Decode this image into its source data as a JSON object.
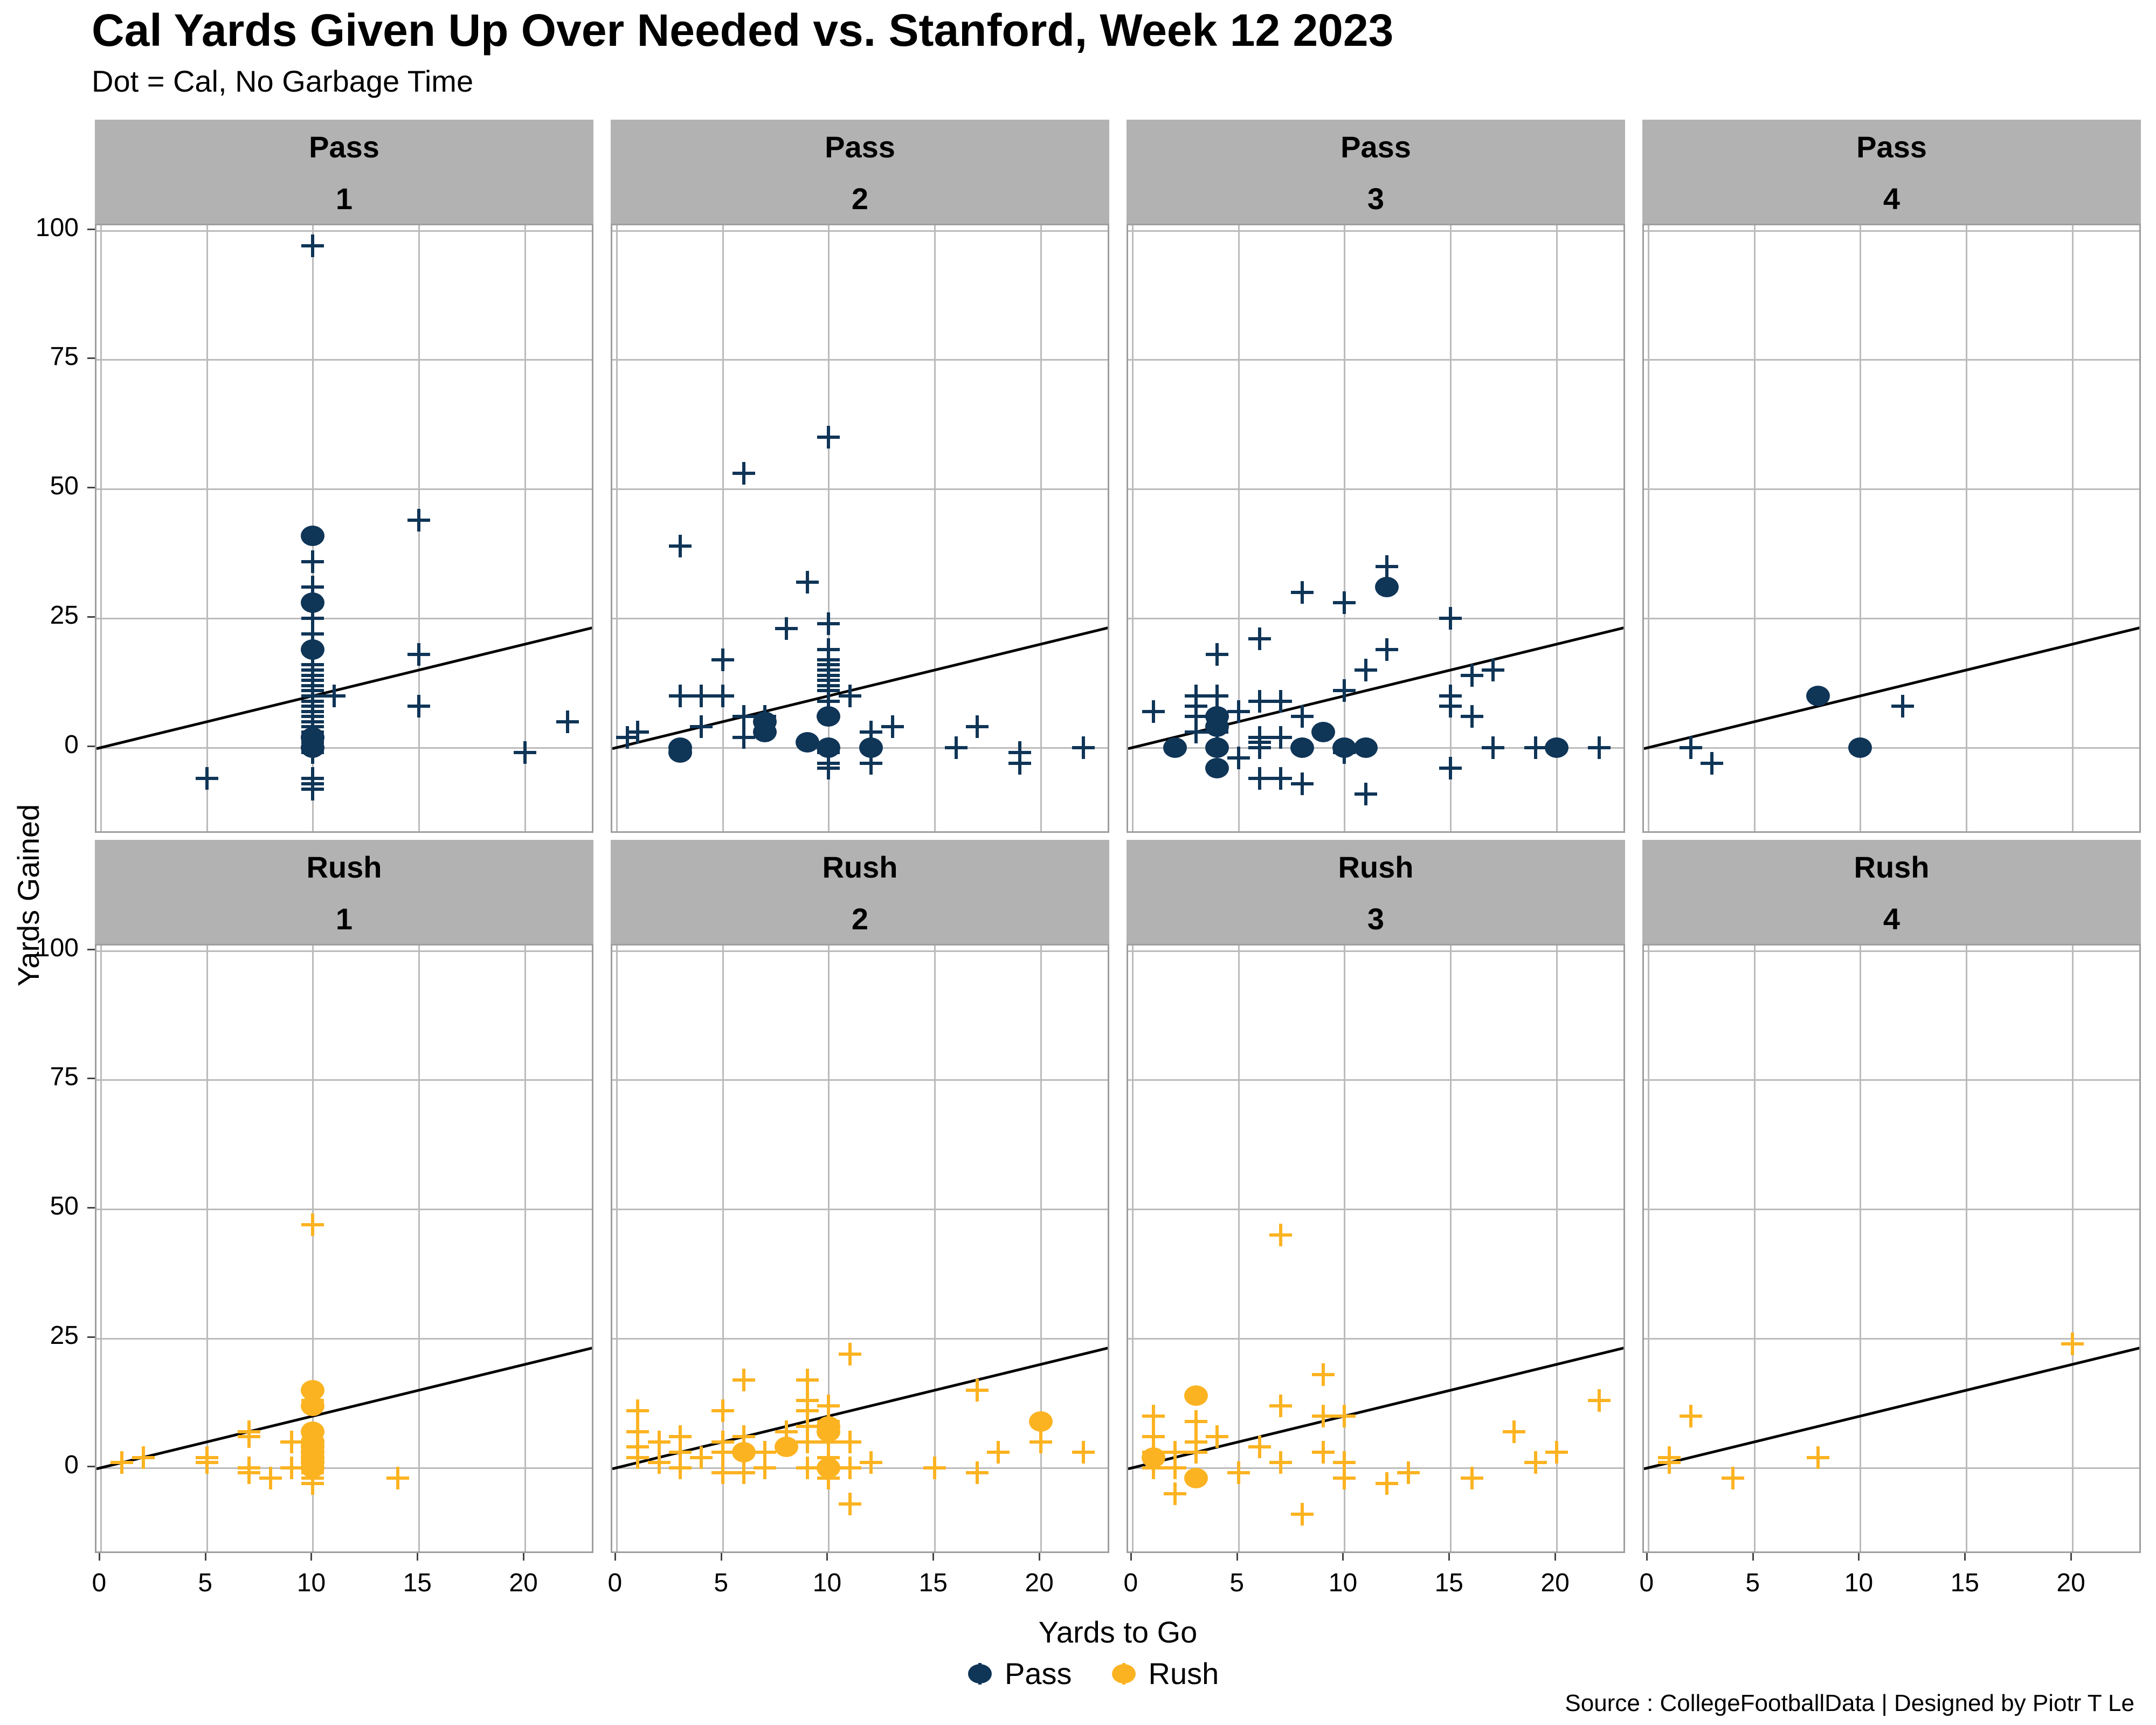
{
  "labels": {
    "title": "Cal Yards Given Up Over Needed vs. Stanford, Week 12 2023",
    "subtitle": "Dot = Cal, No Garbage Time",
    "x_axis": "Yards to Go",
    "y_axis": "Yards Gained",
    "caption": "Source : CollegeFootballData | Designed by Piotr T Le"
  },
  "legend": {
    "items": [
      {
        "label": "Pass",
        "color": "#0F3557"
      },
      {
        "label": "Rush",
        "color": "#FCB321"
      }
    ]
  },
  "colors": {
    "pass": "#0F3557",
    "rush": "#FCB321",
    "strip_bg": "#B2B2B2",
    "gridline": "#BBBBBB",
    "panel_border": "#9E9E9E",
    "refline": "#000000"
  },
  "chart_data": {
    "type": "scatter",
    "title": "Cal Yards Given Up Over Needed vs. Stanford, Week 12 2023",
    "subtitle": "Dot = Cal, No Garbage Time",
    "xlabel": "Yards to Go",
    "ylabel": "Yards Gained",
    "xlim": [
      -0.2,
      23.3
    ],
    "ylim": [
      -16.8,
      101
    ],
    "xticks": [
      0,
      5,
      10,
      15,
      20
    ],
    "yticks": [
      0,
      25,
      50,
      75,
      100
    ],
    "grid": true,
    "legend_position": "bottom",
    "refline": {
      "intercept": 0,
      "slope": 1
    },
    "marker_note": "plus = Stanford play, dot = Cal play",
    "facets": [
      {
        "type": "Pass",
        "down": "1",
        "stanford": [
          [
            10,
            97
          ],
          [
            10,
            36
          ],
          [
            10,
            31
          ],
          [
            10,
            25
          ],
          [
            10,
            22
          ],
          [
            10,
            16
          ],
          [
            10,
            15
          ],
          [
            10,
            14
          ],
          [
            10,
            13
          ],
          [
            10,
            12
          ],
          [
            10,
            11
          ],
          [
            10,
            10
          ],
          [
            10,
            9
          ],
          [
            10,
            8
          ],
          [
            10,
            7
          ],
          [
            10,
            6
          ],
          [
            10,
            5
          ],
          [
            10,
            4
          ],
          [
            10,
            3
          ],
          [
            10,
            2
          ],
          [
            10,
            1
          ],
          [
            10,
            0
          ],
          [
            10,
            -1
          ],
          [
            10,
            -6
          ],
          [
            10,
            -7
          ],
          [
            10,
            -8
          ],
          [
            5,
            -6
          ],
          [
            11,
            10
          ],
          [
            15,
            44
          ],
          [
            15,
            18
          ],
          [
            15,
            8
          ],
          [
            20,
            -1
          ],
          [
            22,
            5
          ]
        ],
        "cal": [
          [
            10,
            41
          ],
          [
            10,
            28
          ],
          [
            10,
            19
          ],
          [
            10,
            2
          ],
          [
            10,
            0
          ]
        ]
      },
      {
        "type": "Pass",
        "down": "2",
        "stanford": [
          [
            0.5,
            2
          ],
          [
            1,
            3
          ],
          [
            3,
            39
          ],
          [
            3,
            10
          ],
          [
            4,
            10
          ],
          [
            4,
            4
          ],
          [
            5,
            17
          ],
          [
            5,
            10
          ],
          [
            6,
            53
          ],
          [
            6,
            6
          ],
          [
            6,
            2
          ],
          [
            7,
            6
          ],
          [
            8,
            23
          ],
          [
            9,
            32
          ],
          [
            10,
            60
          ],
          [
            10,
            24
          ],
          [
            10,
            19
          ],
          [
            10,
            17
          ],
          [
            10,
            16
          ],
          [
            10,
            15
          ],
          [
            10,
            14
          ],
          [
            10,
            13
          ],
          [
            10,
            12
          ],
          [
            10,
            11
          ],
          [
            10,
            9
          ],
          [
            10,
            -1
          ],
          [
            10,
            -3
          ],
          [
            10,
            -4
          ],
          [
            11,
            10
          ],
          [
            12,
            3
          ],
          [
            12,
            -3
          ],
          [
            13,
            4
          ],
          [
            16,
            0
          ],
          [
            17,
            4
          ],
          [
            19,
            -1
          ],
          [
            19,
            -3
          ],
          [
            22,
            0
          ]
        ],
        "cal": [
          [
            3,
            0
          ],
          [
            3,
            -1
          ],
          [
            7,
            5
          ],
          [
            7,
            3
          ],
          [
            9,
            1
          ],
          [
            10,
            6
          ],
          [
            10,
            0
          ],
          [
            12,
            0
          ]
        ]
      },
      {
        "type": "Pass",
        "down": "3",
        "stanford": [
          [
            1,
            7
          ],
          [
            3,
            10
          ],
          [
            3,
            8
          ],
          [
            3,
            6
          ],
          [
            3,
            3
          ],
          [
            4,
            18
          ],
          [
            4,
            10
          ],
          [
            4,
            3
          ],
          [
            5,
            7
          ],
          [
            5,
            -2
          ],
          [
            6,
            21
          ],
          [
            6,
            9
          ],
          [
            6,
            2
          ],
          [
            6,
            1
          ],
          [
            6,
            0
          ],
          [
            6,
            -6
          ],
          [
            7,
            9
          ],
          [
            7,
            2
          ],
          [
            7,
            -6
          ],
          [
            8,
            30
          ],
          [
            8,
            6
          ],
          [
            8,
            -7
          ],
          [
            10,
            28
          ],
          [
            10,
            11
          ],
          [
            10,
            -1
          ],
          [
            11,
            15
          ],
          [
            11,
            -9
          ],
          [
            12,
            35
          ],
          [
            12,
            19
          ],
          [
            15,
            25
          ],
          [
            15,
            10
          ],
          [
            15,
            8
          ],
          [
            15,
            -4
          ],
          [
            16,
            14
          ],
          [
            16,
            6
          ],
          [
            17,
            15
          ],
          [
            17,
            0
          ],
          [
            19,
            0
          ],
          [
            22,
            0
          ]
        ],
        "cal": [
          [
            2,
            0
          ],
          [
            4,
            6
          ],
          [
            4,
            4
          ],
          [
            4,
            0
          ],
          [
            4,
            -4
          ],
          [
            8,
            0
          ],
          [
            9,
            3
          ],
          [
            10,
            0
          ],
          [
            11,
            0
          ],
          [
            12,
            31
          ],
          [
            20,
            0
          ]
        ]
      },
      {
        "type": "Pass",
        "down": "4",
        "stanford": [
          [
            2,
            0
          ],
          [
            3,
            -3
          ],
          [
            12,
            8
          ]
        ],
        "cal": [
          [
            8,
            10
          ],
          [
            10,
            0
          ]
        ]
      },
      {
        "type": "Rush",
        "down": "1",
        "stanford": [
          [
            1,
            1
          ],
          [
            2,
            2
          ],
          [
            5,
            2
          ],
          [
            5,
            1
          ],
          [
            7,
            7
          ],
          [
            7,
            6
          ],
          [
            7,
            0
          ],
          [
            7,
            -1
          ],
          [
            8,
            -2
          ],
          [
            9,
            5
          ],
          [
            9,
            0
          ],
          [
            10,
            47
          ],
          [
            10,
            13
          ],
          [
            10,
            5
          ],
          [
            10,
            4
          ],
          [
            10,
            2
          ],
          [
            10,
            0
          ],
          [
            10,
            -1
          ],
          [
            10,
            -2
          ],
          [
            10,
            -3
          ],
          [
            14,
            -2
          ]
        ],
        "cal": [
          [
            10,
            15
          ],
          [
            10,
            12
          ],
          [
            10,
            7
          ],
          [
            10,
            5
          ],
          [
            10,
            4
          ],
          [
            10,
            3
          ],
          [
            10,
            2
          ],
          [
            10,
            1
          ],
          [
            10,
            0
          ]
        ]
      },
      {
        "type": "Rush",
        "down": "2",
        "stanford": [
          [
            1,
            11
          ],
          [
            1,
            7
          ],
          [
            1,
            4
          ],
          [
            1,
            2
          ],
          [
            2,
            5
          ],
          [
            2,
            1
          ],
          [
            3,
            6
          ],
          [
            3,
            3
          ],
          [
            3,
            0
          ],
          [
            4,
            2
          ],
          [
            5,
            11
          ],
          [
            5,
            5
          ],
          [
            5,
            3
          ],
          [
            5,
            -1
          ],
          [
            6,
            17
          ],
          [
            6,
            6
          ],
          [
            6,
            -1
          ],
          [
            7,
            3
          ],
          [
            7,
            0
          ],
          [
            8,
            7
          ],
          [
            9,
            17
          ],
          [
            9,
            13
          ],
          [
            9,
            11
          ],
          [
            9,
            8
          ],
          [
            9,
            5
          ],
          [
            9,
            0
          ],
          [
            10,
            12
          ],
          [
            10,
            9
          ],
          [
            10,
            5
          ],
          [
            10,
            2
          ],
          [
            10,
            -2
          ],
          [
            11,
            22
          ],
          [
            11,
            5
          ],
          [
            11,
            0
          ],
          [
            11,
            -7
          ],
          [
            12,
            1
          ],
          [
            15,
            0
          ],
          [
            17,
            15
          ],
          [
            17,
            -1
          ],
          [
            18,
            3
          ],
          [
            20,
            5
          ],
          [
            22,
            3
          ]
        ],
        "cal": [
          [
            6,
            3
          ],
          [
            8,
            4
          ],
          [
            10,
            8
          ],
          [
            10,
            7
          ],
          [
            10,
            0
          ],
          [
            20,
            9
          ]
        ]
      },
      {
        "type": "Rush",
        "down": "3",
        "stanford": [
          [
            1,
            10
          ],
          [
            1,
            6
          ],
          [
            1,
            3
          ],
          [
            1,
            0
          ],
          [
            2,
            3
          ],
          [
            2,
            0
          ],
          [
            2,
            -5
          ],
          [
            3,
            9
          ],
          [
            3,
            5
          ],
          [
            3,
            3
          ],
          [
            4,
            6
          ],
          [
            5,
            -1
          ],
          [
            6,
            4
          ],
          [
            7,
            45
          ],
          [
            7,
            12
          ],
          [
            7,
            1
          ],
          [
            8,
            -9
          ],
          [
            9,
            18
          ],
          [
            9,
            10
          ],
          [
            9,
            3
          ],
          [
            10,
            10
          ],
          [
            10,
            1
          ],
          [
            10,
            -2
          ],
          [
            12,
            -3
          ],
          [
            13,
            -1
          ],
          [
            16,
            -2
          ],
          [
            18,
            7
          ],
          [
            19,
            1
          ],
          [
            20,
            3
          ],
          [
            22,
            13
          ]
        ],
        "cal": [
          [
            1,
            2
          ],
          [
            3,
            14
          ],
          [
            3,
            -2
          ]
        ]
      },
      {
        "type": "Rush",
        "down": "4",
        "stanford": [
          [
            1,
            2
          ],
          [
            1,
            1
          ],
          [
            2,
            10
          ],
          [
            4,
            -2
          ],
          [
            8,
            2
          ],
          [
            20,
            24
          ]
        ],
        "cal": []
      }
    ]
  }
}
